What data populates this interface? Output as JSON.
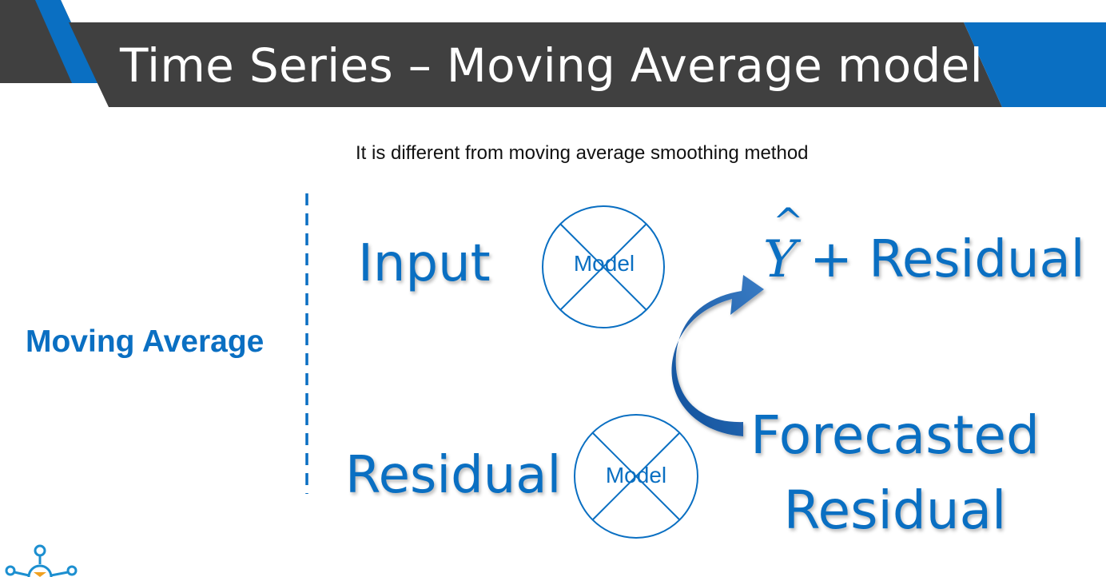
{
  "slide": {
    "title": "Time Series – Moving Average model",
    "subtitle": "It is different from moving average smoothing method",
    "side_label": "Moving Average"
  },
  "diagram": {
    "input_label": "Input",
    "residual_label": "Residual",
    "model_label_1": "Model",
    "model_label_2": "Model",
    "yhat_symbol": "Y",
    "yhat_hat": "^",
    "yhat_rest": "+ Residual",
    "forecast_line1": "Forecasted",
    "forecast_line2": "Residual"
  },
  "colors": {
    "accent_blue": "#0a6fc2",
    "banner_dark": "#404040",
    "arrow_blue": "#1f5fa8"
  }
}
